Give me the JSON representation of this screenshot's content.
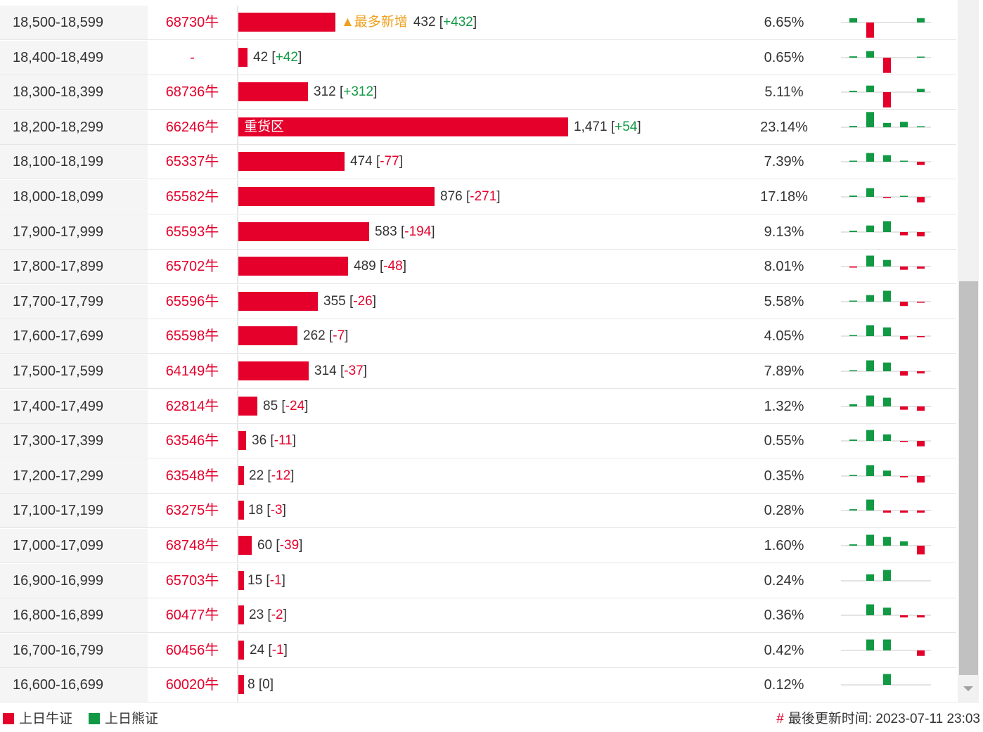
{
  "colors": {
    "bull": "#e4002b",
    "bear": "#119944",
    "hot": "#f0a020"
  },
  "rows": [
    {
      "range": "18,500-18,599",
      "code": "68730牛",
      "value": 432,
      "change": "+432",
      "dir": "up",
      "pct": "6.65%",
      "label": "▲最多新增",
      "spark": [
        2,
        -7,
        0,
        0,
        2
      ]
    },
    {
      "range": "18,400-18,499",
      "code": "-",
      "value": 42,
      "change": "+42",
      "dir": "up",
      "pct": "0.65%",
      "label": "",
      "spark": [
        0.6,
        3,
        -7,
        0,
        0.3
      ]
    },
    {
      "range": "18,300-18,399",
      "code": "68736牛",
      "value": 312,
      "change": "+312",
      "dir": "up",
      "pct": "5.11%",
      "label": "",
      "spark": [
        0.6,
        3,
        -7,
        0,
        1.5
      ]
    },
    {
      "range": "18,200-18,299",
      "code": "66246牛",
      "value": 1471,
      "change": "+54",
      "dir": "up",
      "pct": "23.14%",
      "label": "重货区",
      "spark": [
        0.6,
        7,
        2,
        2.5,
        0.3
      ]
    },
    {
      "range": "18,100-18,199",
      "code": "65337牛",
      "value": 474,
      "change": "-77",
      "dir": "down",
      "pct": "7.39%",
      "label": "",
      "spark": [
        0.4,
        4,
        3,
        0.3,
        -1.5
      ]
    },
    {
      "range": "18,000-18,099",
      "code": "65582牛",
      "value": 876,
      "change": "-271",
      "dir": "down",
      "pct": "17.18%",
      "label": "",
      "spark": [
        0.6,
        4,
        -0.4,
        0.5,
        -2.5
      ]
    },
    {
      "range": "17,900-17,999",
      "code": "65593牛",
      "value": 583,
      "change": "-194",
      "dir": "down",
      "pct": "9.13%",
      "label": "",
      "spark": [
        0.6,
        3,
        5,
        -1.5,
        -2
      ]
    },
    {
      "range": "17,800-17,899",
      "code": "65702牛",
      "value": 489,
      "change": "-48",
      "dir": "down",
      "pct": "8.01%",
      "label": "",
      "spark": [
        -0.5,
        5,
        3,
        -1.5,
        -1
      ]
    },
    {
      "range": "17,700-17,799",
      "code": "65596牛",
      "value": 355,
      "change": "-26",
      "dir": "down",
      "pct": "5.58%",
      "label": "",
      "spark": [
        0.2,
        3,
        5,
        -2,
        -0.5
      ]
    },
    {
      "range": "17,600-17,699",
      "code": "65598牛",
      "value": 262,
      "change": "-7",
      "dir": "down",
      "pct": "4.05%",
      "label": "",
      "spark": [
        0.4,
        5,
        4,
        -1.5,
        -0.3
      ]
    },
    {
      "range": "17,500-17,599",
      "code": "64149牛",
      "value": 314,
      "change": "-37",
      "dir": "down",
      "pct": "7.89%",
      "label": "",
      "spark": [
        0.4,
        5,
        4,
        -2,
        -1
      ]
    },
    {
      "range": "17,400-17,499",
      "code": "62814牛",
      "value": 85,
      "change": "-24",
      "dir": "down",
      "pct": "1.32%",
      "label": "",
      "spark": [
        1,
        5,
        4,
        -1.5,
        -2
      ]
    },
    {
      "range": "17,300-17,399",
      "code": "63546牛",
      "value": 36,
      "change": "-11",
      "dir": "down",
      "pct": "0.55%",
      "label": "",
      "spark": [
        0.6,
        5,
        3,
        -0.5,
        -2.5
      ]
    },
    {
      "range": "17,200-17,299",
      "code": "63548牛",
      "value": 22,
      "change": "-12",
      "dir": "down",
      "pct": "0.35%",
      "label": "",
      "spark": [
        0.4,
        5,
        2.5,
        -0.6,
        -3
      ]
    },
    {
      "range": "17,100-17,199",
      "code": "63275牛",
      "value": 18,
      "change": "-3",
      "dir": "down",
      "pct": "0.28%",
      "label": "",
      "spark": [
        0.6,
        5,
        -1,
        -1,
        -1
      ]
    },
    {
      "range": "17,000-17,099",
      "code": "68748牛",
      "value": 60,
      "change": "-39",
      "dir": "down",
      "pct": "1.60%",
      "label": "",
      "spark": [
        0.6,
        5,
        4,
        2,
        -4
      ]
    },
    {
      "range": "16,900-16,999",
      "code": "65703牛",
      "value": 15,
      "change": "-1",
      "dir": "down",
      "pct": "0.24%",
      "label": "",
      "spark": [
        0,
        3,
        5,
        0,
        0
      ]
    },
    {
      "range": "16,800-16,899",
      "code": "60477牛",
      "value": 23,
      "change": "-2",
      "dir": "down",
      "pct": "0.36%",
      "label": "",
      "spark": [
        0,
        5,
        3.5,
        -1,
        -1
      ]
    },
    {
      "range": "16,700-16,799",
      "code": "60456牛",
      "value": 24,
      "change": "-1",
      "dir": "down",
      "pct": "0.42%",
      "label": "",
      "spark": [
        0,
        5,
        5,
        0,
        -2.5
      ]
    },
    {
      "range": "16,600-16,699",
      "code": "60020牛",
      "value": 8,
      "change": "0",
      "dir": "flat",
      "pct": "0.12%",
      "label": "",
      "spark": [
        0,
        0,
        5,
        0,
        0
      ]
    }
  ],
  "footer": {
    "legend_bull": "上日牛证",
    "legend_bear": "上日熊证",
    "hash": "#",
    "updated": "最後更新时间: 2023-07-11 23:03"
  }
}
